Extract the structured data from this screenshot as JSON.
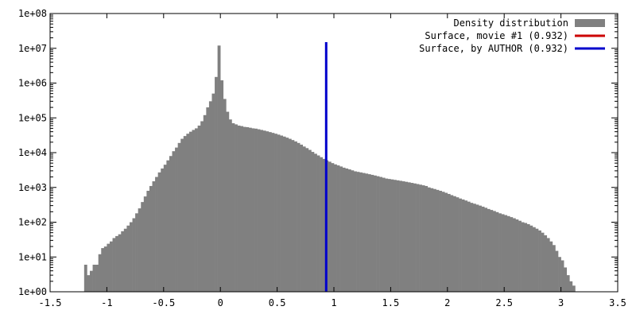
{
  "chart_data": {
    "type": "bar",
    "scale": "log-y",
    "xlim": [
      -1.5,
      3.5
    ],
    "ylim": [
      1,
      100000000
    ],
    "xticks": [
      -1.5,
      -1,
      -0.5,
      0,
      0.5,
      1,
      1.5,
      2,
      2.5,
      3,
      3.5
    ],
    "xtick_labels": [
      "-1.5",
      "-1",
      "-0.5",
      "0",
      "0.5",
      "1",
      "1.5",
      "2",
      "2.5",
      "3",
      "3.5"
    ],
    "yticks": [
      1,
      10,
      100,
      1000,
      10000,
      100000,
      1000000,
      10000000,
      100000000
    ],
    "ytick_labels": [
      "1e+00",
      "1e+01",
      "1e+02",
      "1e+03",
      "1e+04",
      "1e+05",
      "1e+06",
      "1e+07",
      "1e+08"
    ],
    "grid": false,
    "legend_position": "top-right",
    "histogram": {
      "name": "Density distribution",
      "color": "#808080",
      "bin_width": 0.025,
      "bins": [
        [
          -1.2,
          6
        ],
        [
          -1.175,
          3
        ],
        [
          -1.15,
          4
        ],
        [
          -1.125,
          6
        ],
        [
          -1.1,
          6
        ],
        [
          -1.075,
          12
        ],
        [
          -1.05,
          18
        ],
        [
          -1.025,
          20
        ],
        [
          -1.0,
          24
        ],
        [
          -0.975,
          28
        ],
        [
          -0.95,
          35
        ],
        [
          -0.925,
          40
        ],
        [
          -0.9,
          45
        ],
        [
          -0.875,
          55
        ],
        [
          -0.85,
          65
        ],
        [
          -0.825,
          80
        ],
        [
          -0.8,
          100
        ],
        [
          -0.775,
          130
        ],
        [
          -0.75,
          180
        ],
        [
          -0.725,
          250
        ],
        [
          -0.7,
          380
        ],
        [
          -0.675,
          550
        ],
        [
          -0.65,
          800
        ],
        [
          -0.625,
          1100
        ],
        [
          -0.6,
          1500
        ],
        [
          -0.575,
          2000
        ],
        [
          -0.55,
          2700
        ],
        [
          -0.525,
          3500
        ],
        [
          -0.5,
          4500
        ],
        [
          -0.475,
          6000
        ],
        [
          -0.45,
          8000
        ],
        [
          -0.425,
          11000
        ],
        [
          -0.4,
          14000
        ],
        [
          -0.375,
          19000
        ],
        [
          -0.35,
          25000
        ],
        [
          -0.325,
          30000
        ],
        [
          -0.3,
          35000
        ],
        [
          -0.275,
          40000
        ],
        [
          -0.25,
          45000
        ],
        [
          -0.225,
          50000
        ],
        [
          -0.2,
          60000
        ],
        [
          -0.175,
          80000
        ],
        [
          -0.15,
          120000
        ],
        [
          -0.125,
          200000
        ],
        [
          -0.1,
          300000
        ],
        [
          -0.075,
          500000
        ],
        [
          -0.05,
          1500000
        ],
        [
          -0.025,
          12000000
        ],
        [
          0.0,
          1200000
        ],
        [
          0.025,
          350000
        ],
        [
          0.05,
          150000
        ],
        [
          0.075,
          90000
        ],
        [
          0.1,
          70000
        ],
        [
          0.125,
          65000
        ],
        [
          0.15,
          60000
        ],
        [
          0.175,
          58000
        ],
        [
          0.2,
          55000
        ],
        [
          0.225,
          54000
        ],
        [
          0.25,
          52000
        ],
        [
          0.275,
          50000
        ],
        [
          0.3,
          49000
        ],
        [
          0.325,
          47000
        ],
        [
          0.35,
          45000
        ],
        [
          0.375,
          43000
        ],
        [
          0.4,
          41000
        ],
        [
          0.425,
          39000
        ],
        [
          0.45,
          37000
        ],
        [
          0.475,
          35000
        ],
        [
          0.5,
          33000
        ],
        [
          0.525,
          31000
        ],
        [
          0.55,
          29000
        ],
        [
          0.575,
          27000
        ],
        [
          0.6,
          25000
        ],
        [
          0.625,
          23000
        ],
        [
          0.65,
          21000
        ],
        [
          0.675,
          19000
        ],
        [
          0.7,
          17000
        ],
        [
          0.725,
          15000
        ],
        [
          0.75,
          13500
        ],
        [
          0.775,
          12000
        ],
        [
          0.8,
          10500
        ],
        [
          0.825,
          9300
        ],
        [
          0.85,
          8300
        ],
        [
          0.875,
          7400
        ],
        [
          0.9,
          6600
        ],
        [
          0.925,
          6000
        ],
        [
          0.95,
          5500
        ],
        [
          0.975,
          5000
        ],
        [
          1.0,
          4600
        ],
        [
          1.025,
          4300
        ],
        [
          1.05,
          4000
        ],
        [
          1.075,
          3700
        ],
        [
          1.1,
          3500
        ],
        [
          1.125,
          3300
        ],
        [
          1.15,
          3100
        ],
        [
          1.175,
          2900
        ],
        [
          1.2,
          2800
        ],
        [
          1.225,
          2700
        ],
        [
          1.25,
          2600
        ],
        [
          1.275,
          2500
        ],
        [
          1.3,
          2400
        ],
        [
          1.325,
          2300
        ],
        [
          1.35,
          2200
        ],
        [
          1.375,
          2100
        ],
        [
          1.4,
          2000
        ],
        [
          1.425,
          1900
        ],
        [
          1.45,
          1800
        ],
        [
          1.475,
          1750
        ],
        [
          1.5,
          1700
        ],
        [
          1.525,
          1650
        ],
        [
          1.55,
          1600
        ],
        [
          1.575,
          1550
        ],
        [
          1.6,
          1500
        ],
        [
          1.625,
          1450
        ],
        [
          1.65,
          1400
        ],
        [
          1.675,
          1350
        ],
        [
          1.7,
          1300
        ],
        [
          1.725,
          1250
        ],
        [
          1.75,
          1200
        ],
        [
          1.775,
          1150
        ],
        [
          1.8,
          1100
        ],
        [
          1.825,
          1000
        ],
        [
          1.85,
          950
        ],
        [
          1.875,
          900
        ],
        [
          1.9,
          850
        ],
        [
          1.925,
          800
        ],
        [
          1.95,
          750
        ],
        [
          1.975,
          700
        ],
        [
          2.0,
          650
        ],
        [
          2.025,
          600
        ],
        [
          2.05,
          560
        ],
        [
          2.075,
          520
        ],
        [
          2.1,
          480
        ],
        [
          2.125,
          450
        ],
        [
          2.15,
          420
        ],
        [
          2.175,
          390
        ],
        [
          2.2,
          360
        ],
        [
          2.225,
          340
        ],
        [
          2.25,
          320
        ],
        [
          2.275,
          300
        ],
        [
          2.3,
          280
        ],
        [
          2.325,
          260
        ],
        [
          2.35,
          240
        ],
        [
          2.375,
          225
        ],
        [
          2.4,
          210
        ],
        [
          2.425,
          195
        ],
        [
          2.45,
          180
        ],
        [
          2.475,
          170
        ],
        [
          2.5,
          160
        ],
        [
          2.525,
          150
        ],
        [
          2.55,
          140
        ],
        [
          2.575,
          130
        ],
        [
          2.6,
          120
        ],
        [
          2.625,
          110
        ],
        [
          2.65,
          100
        ],
        [
          2.675,
          95
        ],
        [
          2.7,
          88
        ],
        [
          2.725,
          80
        ],
        [
          2.75,
          72
        ],
        [
          2.775,
          65
        ],
        [
          2.8,
          58
        ],
        [
          2.825,
          50
        ],
        [
          2.85,
          42
        ],
        [
          2.875,
          35
        ],
        [
          2.9,
          28
        ],
        [
          2.925,
          22
        ],
        [
          2.95,
          15
        ],
        [
          2.975,
          10
        ],
        [
          3.0,
          8
        ],
        [
          3.025,
          5
        ],
        [
          3.05,
          3
        ],
        [
          3.075,
          2
        ],
        [
          3.1,
          1.5
        ]
      ]
    },
    "lines": [
      {
        "name": "Surface, movie #1 (0.932)",
        "color": "#cc0000",
        "x": 0.932
      },
      {
        "name": "Surface, by AUTHOR (0.932)",
        "color": "#0000cc",
        "x": 0.932,
        "y_top": 15000000
      }
    ]
  }
}
